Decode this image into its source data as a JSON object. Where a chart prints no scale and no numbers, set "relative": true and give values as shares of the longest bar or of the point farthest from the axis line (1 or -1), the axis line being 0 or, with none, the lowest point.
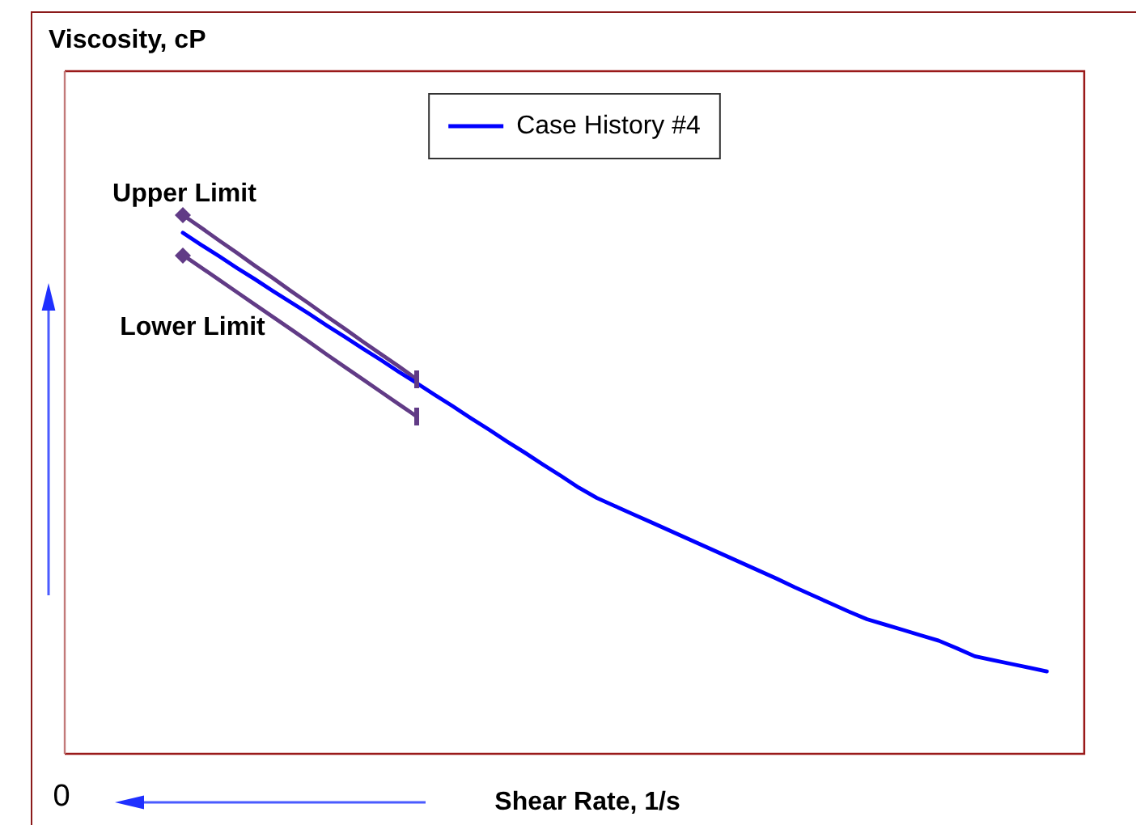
{
  "chart_data": {
    "type": "line",
    "xlabel": "Shear Rate, 1/s",
    "relative": true,
    "legend": "top",
    "categories": [
      null,
      null,
      null,
      null,
      null,
      null,
      null,
      null,
      null,
      null,
      null,
      null,
      null,
      null,
      null,
      null,
      null,
      null,
      null,
      null,
      null,
      null,
      null,
      null,
      null,
      null,
      null,
      null,
      null,
      null,
      null,
      null,
      null,
      null,
      null,
      null,
      null,
      null,
      null,
      null,
      null,
      null,
      null,
      null,
      null,
      null,
      null,
      null,
      null
    ],
    "series": [
      {
        "name": "Case History #4",
        "color": "#0000ff",
        "values": [
          0.967,
          0.945,
          0.924,
          0.902,
          0.881,
          0.859,
          0.838,
          0.817,
          0.795,
          0.774,
          0.752,
          0.731,
          0.709,
          0.688,
          0.666,
          0.645,
          0.623,
          0.602,
          0.58,
          0.559,
          0.537,
          0.516,
          0.494,
          0.475,
          0.46,
          0.445,
          0.43,
          0.415,
          0.4,
          0.385,
          0.37,
          0.355,
          0.34,
          0.325,
          0.309,
          0.294,
          0.279,
          0.264,
          0.25,
          0.24,
          0.23,
          0.22,
          0.21,
          0.196,
          0.181,
          0.174,
          0.167,
          0.16,
          0.153
        ]
      },
      {
        "name": "Upper Limit",
        "color": "#613b86",
        "values": [
          1,
          0.977,
          0.953,
          0.93,
          0.906,
          0.883,
          0.859,
          0.836,
          0.812,
          0.789,
          0.765,
          0.742,
          0.719,
          0.695,
          null,
          null,
          null,
          null,
          null,
          null,
          null,
          null,
          null,
          null,
          null,
          null,
          null,
          null,
          null,
          null,
          null,
          null,
          null,
          null,
          null,
          null,
          null,
          null,
          null,
          null,
          null,
          null,
          null,
          null,
          null,
          null,
          null,
          null,
          null
        ]
      },
      {
        "name": "Lower Limit",
        "color": "#613b86",
        "values": [
          0.926,
          0.903,
          0.88,
          0.857,
          0.834,
          0.811,
          0.788,
          0.765,
          0.741,
          0.718,
          0.695,
          0.672,
          0.649,
          0.626,
          null,
          null,
          null,
          null,
          null,
          null,
          null,
          null,
          null,
          null,
          null,
          null,
          null,
          null,
          null,
          null,
          null,
          null,
          null,
          null,
          null,
          null,
          null,
          null,
          null,
          null,
          null,
          null,
          null,
          null,
          null,
          null,
          null,
          null,
          null
        ]
      }
    ],
    "annotations": [
      "Viscosity, cP",
      "0"
    ]
  }
}
